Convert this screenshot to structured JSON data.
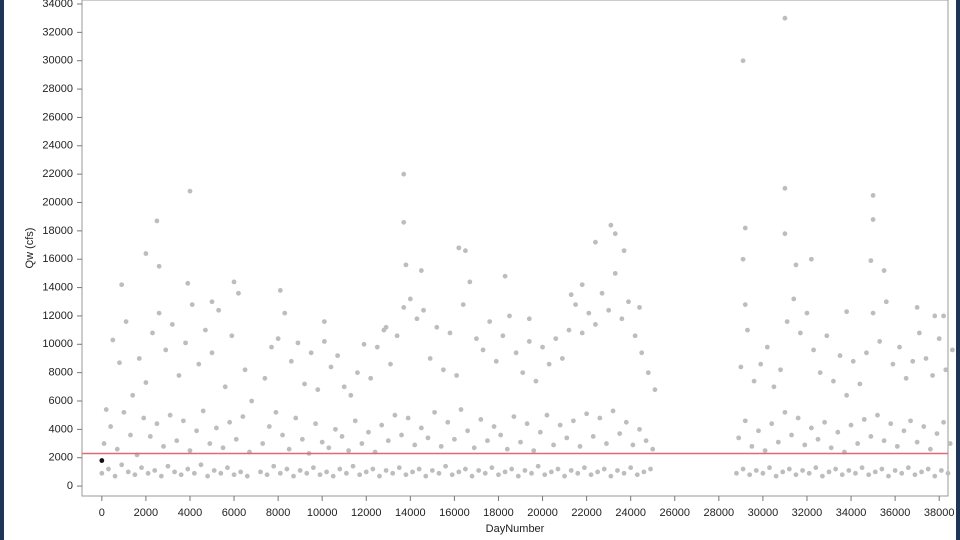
{
  "chart_data": {
    "type": "scatter",
    "x_label": "DayNumber",
    "y_label": "Qw (cfs)",
    "color": "#bdbdbd",
    "xlim": [
      -900,
      38400
    ],
    "ylim": [
      -700,
      34000
    ],
    "xticks": [
      0,
      2000,
      4000,
      6000,
      8000,
      10000,
      12000,
      14000,
      16000,
      18000,
      20000,
      22000,
      24000,
      26000,
      28000,
      30000,
      32000,
      34000,
      36000,
      38000
    ],
    "yticks": [
      0,
      2000,
      4000,
      6000,
      8000,
      10000,
      12000,
      14000,
      16000,
      18000,
      20000,
      22000,
      24000,
      26000,
      28000,
      30000,
      32000,
      34000
    ],
    "grid": false,
    "reference_line": {
      "value": 2300,
      "color": "#e06a73"
    },
    "highlight": {
      "x": 0,
      "value": 1800,
      "color": "#111111"
    },
    "x": [
      0,
      100,
      200,
      300,
      400,
      500,
      600,
      700,
      800,
      900,
      1000,
      1100,
      1200,
      1300,
      1400,
      1500,
      1600,
      1700,
      1800,
      1900,
      2000,
      2100,
      2200,
      2300,
      2400,
      2500,
      2600,
      2700,
      2800,
      2900,
      3000,
      3100,
      3200,
      3300,
      3400,
      3500,
      3600,
      3700,
      3800,
      3900,
      4000,
      4100,
      4200,
      4300,
      4400,
      4500,
      4600,
      4700,
      4800,
      4900,
      5000,
      5100,
      5200,
      5300,
      5400,
      5500,
      5600,
      5700,
      5800,
      5900,
      6000,
      6100,
      6200,
      6300,
      6400,
      6500,
      6600,
      6700,
      6800,
      7200,
      7300,
      7400,
      7500,
      7600,
      7700,
      7800,
      7900,
      8000,
      8100,
      8200,
      8300,
      8400,
      8500,
      8600,
      8700,
      8800,
      8900,
      9000,
      9100,
      9200,
      9300,
      9400,
      9500,
      9600,
      9700,
      9800,
      9900,
      10000,
      10100,
      10200,
      10300,
      10400,
      10500,
      10600,
      10700,
      10800,
      10900,
      11000,
      11100,
      11200,
      11300,
      11400,
      11500,
      11600,
      11700,
      11800,
      11900,
      12000,
      12100,
      12200,
      12300,
      12400,
      12500,
      12600,
      12700,
      12800,
      12900,
      13000,
      13100,
      13200,
      13300,
      13400,
      13500,
      13600,
      13700,
      13800,
      13900,
      14000,
      14100,
      14200,
      14300,
      14400,
      14500,
      14600,
      14700,
      14800,
      14900,
      15000,
      15100,
      15200,
      15300,
      15400,
      15500,
      15600,
      15700,
      15800,
      15900,
      16000,
      16100,
      16200,
      16300,
      16400,
      16500,
      16600,
      16700,
      16800,
      16900,
      17000,
      17100,
      17200,
      17300,
      17400,
      17500,
      17600,
      17700,
      17800,
      17900,
      18000,
      18100,
      18200,
      18300,
      18400,
      18500,
      18600,
      18700,
      18800,
      18900,
      19000,
      19100,
      19200,
      19300,
      19400,
      19500,
      19600,
      19700,
      19800,
      19900,
      20000,
      20100,
      20200,
      20300,
      20400,
      20500,
      20600,
      20700,
      20800,
      20900,
      21000,
      21100,
      21200,
      21300,
      21400,
      21500,
      21600,
      21700,
      21800,
      21900,
      22000,
      22100,
      22200,
      22300,
      22400,
      22500,
      22600,
      22700,
      22800,
      22900,
      23000,
      23100,
      23200,
      23300,
      23400,
      23500,
      23600,
      23700,
      23800,
      23900,
      24000,
      24100,
      24200,
      24300,
      24400,
      24500,
      24600,
      24700,
      24800,
      24900,
      25000,
      25100,
      28800,
      28900,
      29000,
      29100,
      29200,
      29300,
      29400,
      29500,
      29600,
      29700,
      29800,
      29900,
      30000,
      30100,
      30200,
      30300,
      30400,
      30500,
      30600,
      30700,
      30800,
      30900,
      31000,
      31100,
      31200,
      31300,
      31400,
      31500,
      31600,
      31700,
      31800,
      31900,
      32000,
      32100,
      32200,
      32300,
      32400,
      32500,
      32600,
      32700,
      32800,
      32900,
      33000,
      33100,
      33200,
      33300,
      33400,
      33500,
      33600,
      33700,
      33800,
      33900,
      34000,
      34100,
      34200,
      34300,
      34400,
      34500,
      34600,
      34700,
      34800,
      34900,
      35000,
      35100,
      35200,
      35300,
      35400,
      35500,
      35600,
      35700,
      35800,
      35900,
      36000,
      36100,
      36200,
      36300,
      36400,
      36500,
      36600,
      36700,
      36800,
      36900,
      37000,
      37100,
      37200,
      37300,
      37400,
      37500,
      37600,
      37700,
      37800,
      37900,
      38000,
      38100,
      38200,
      38300,
      38400,
      38500,
      38600,
      900,
      2000,
      2500,
      2600,
      4000,
      3900,
      5000,
      6000,
      8100,
      10100,
      12900,
      13700,
      13700,
      13800,
      14500,
      16200,
      16500,
      18300,
      19400,
      21300,
      21800,
      22400,
      23100,
      23300,
      23700,
      24400,
      29100,
      29200,
      29100,
      29200,
      31000,
      31000,
      31000,
      31500,
      32200,
      33800,
      34900,
      35000,
      35000,
      35500,
      37000,
      37800,
      38200
    ],
    "values": [
      900,
      3000,
      5400,
      1200,
      4200,
      10300,
      700,
      2600,
      8700,
      1500,
      5200,
      11600,
      1000,
      3600,
      6400,
      800,
      2200,
      9000,
      1300,
      4800,
      7300,
      900,
      3500,
      10800,
      1100,
      4400,
      12200,
      700,
      2800,
      9600,
      1400,
      5000,
      11400,
      1000,
      3200,
      7800,
      800,
      4600,
      10100,
      1200,
      2500,
      12800,
      900,
      3900,
      8600,
      1500,
      5300,
      11000,
      700,
      3000,
      9400,
      1100,
      4100,
      12400,
      900,
      2700,
      7000,
      1300,
      4500,
      10600,
      800,
      3300,
      13600,
      1000,
      4900,
      8200,
      700,
      2400,
      6000,
      1000,
      3000,
      7600,
      800,
      4200,
      9800,
      1400,
      5200,
      10400,
      900,
      3600,
      12200,
      1200,
      2600,
      8800,
      700,
      4800,
      10100,
      1100,
      3300,
      7200,
      900,
      2300,
      9400,
      1300,
      4400,
      6800,
      800,
      3100,
      10200,
      1000,
      2700,
      8400,
      700,
      4000,
      9200,
      1200,
      3500,
      7000,
      900,
      2500,
      6400,
      1400,
      4600,
      8000,
      800,
      3000,
      10000,
      1000,
      3800,
      7600,
      1200,
      2400,
      9800,
      700,
      4300,
      11000,
      1100,
      3200,
      8600,
      900,
      5000,
      10600,
      1300,
      3600,
      12600,
      800,
      4800,
      13200,
      1000,
      2900,
      11800,
      1200,
      4100,
      12400,
      700,
      3400,
      9000,
      1100,
      5200,
      11200,
      900,
      2800,
      8200,
      1400,
      4500,
      10800,
      800,
      3300,
      7800,
      1000,
      5400,
      12800,
      1200,
      3900,
      14400,
      700,
      2700,
      10400,
      1100,
      4700,
      9600,
      900,
      3200,
      11600,
      1300,
      4200,
      8800,
      800,
      3600,
      10600,
      1000,
      2600,
      12000,
      1200,
      4900,
      9400,
      700,
      3100,
      8000,
      1100,
      4400,
      10200,
      900,
      2500,
      7400,
      1400,
      3800,
      9800,
      800,
      5000,
      8600,
      1000,
      2900,
      10400,
      1200,
      4300,
      9000,
      700,
      3400,
      11000,
      1100,
      4600,
      12800,
      900,
      2800,
      10800,
      1300,
      5100,
      12200,
      800,
      3500,
      11400,
      1000,
      4800,
      13600,
      1200,
      3000,
      12400,
      700,
      5300,
      15000,
      1100,
      3700,
      11800,
      900,
      4500,
      13000,
      1300,
      2900,
      10600,
      800,
      4000,
      9400,
      1000,
      3200,
      8000,
      1200,
      2600,
      6800,
      900,
      3400,
      8400,
      1200,
      4600,
      11000,
      800,
      2800,
      7400,
      1100,
      3900,
      8600,
      900,
      2500,
      9800,
      1300,
      4400,
      7000,
      700,
      3100,
      8200,
      1000,
      5200,
      11600,
      1200,
      3600,
      13200,
      800,
      4800,
      10800,
      1100,
      2900,
      12200,
      900,
      4100,
      9600,
      1300,
      3300,
      8000,
      700,
      4500,
      10600,
      1000,
      2700,
      7400,
      1200,
      3800,
      9200,
      800,
      2400,
      6400,
      1100,
      4300,
      8800,
      900,
      3000,
      7200,
      1300,
      4700,
      9400,
      800,
      3500,
      12200,
      1000,
      5000,
      10200,
      1200,
      3200,
      13000,
      700,
      4400,
      8600,
      1100,
      2800,
      9800,
      900,
      3900,
      7600,
      1300,
      4600,
      8800,
      800,
      3100,
      10800,
      1000,
      4200,
      9000,
      1200,
      2600,
      7800,
      700,
      3700,
      10400,
      1100,
      4500,
      8200,
      900,
      3000,
      9600,
      14200,
      16400,
      18700,
      15500,
      20800,
      14300,
      13000,
      14400,
      13800,
      11600,
      11200,
      22000,
      18600,
      15600,
      15200,
      16800,
      16600,
      14800,
      11800,
      13500,
      14200,
      17200,
      18400,
      17800,
      16600,
      12600,
      30000,
      18200,
      16000,
      12800,
      33000,
      21000,
      17800,
      15600,
      16000,
      12300,
      15900,
      20500,
      18800,
      15200,
      12600,
      12000,
      12000
    ]
  }
}
